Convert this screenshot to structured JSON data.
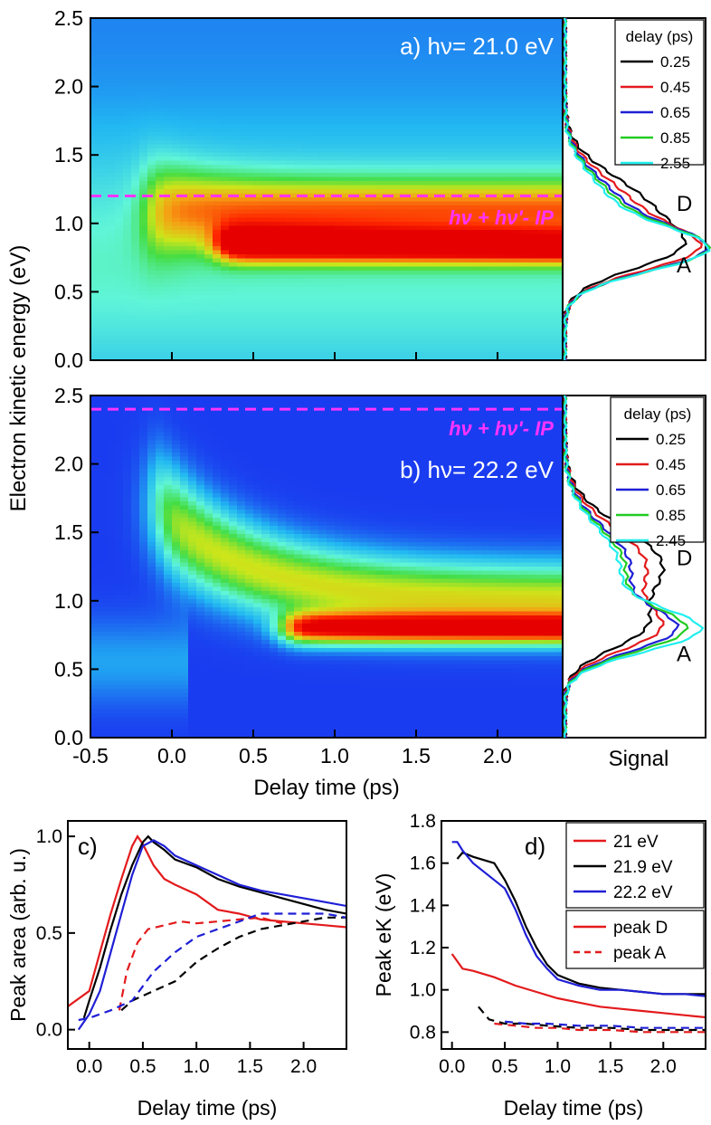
{
  "chart_data": [
    {
      "panel": "a",
      "type": "heatmap",
      "label_prefix": "a)",
      "photon_label": "hν= 21.0 eV",
      "line_label": "hν + hν'- IP",
      "line_y": 1.2,
      "xlim": [
        -0.5,
        2.4
      ],
      "ylim": [
        0,
        2.5
      ],
      "yticks": [
        "0.0",
        "0.5",
        "1.0",
        "1.5",
        "2.0",
        "2.5"
      ],
      "xticks": [
        "-0.5",
        "0.0",
        "0.5",
        "1.0",
        "1.5",
        "2.0"
      ],
      "colormap": [
        "#1a3cf0",
        "#22b8f2",
        "#5ff5d8",
        "#44dd44",
        "#cde51a",
        "#f5a014",
        "#ff2a00",
        "#e60000"
      ],
      "ridges": [
        {
          "name": "D",
          "e0": 1.1,
          "e_inf": 1.1,
          "t0": -0.15,
          "width": 0.22,
          "amp": 0.55,
          "decay": 0.35,
          "floor": 0.15
        },
        {
          "name": "A",
          "e0": 0.85,
          "e_inf": 0.77,
          "t0": 0.3,
          "width": 0.08,
          "amp": 0.95,
          "decay": 6.0,
          "floor": 0.85
        }
      ]
    },
    {
      "panel": "b",
      "type": "heatmap",
      "label_prefix": "b)",
      "photon_label": "hν= 22.2 eV",
      "line_label": "hν + hν'- IP",
      "line_y": 2.4,
      "xlim": [
        -0.5,
        2.4
      ],
      "ylim": [
        0,
        2.5
      ],
      "yticks": [
        "0.0",
        "0.5",
        "1.0",
        "1.5",
        "2.0",
        "2.5"
      ],
      "xticks": [
        "-0.5",
        "0.0",
        "0.5",
        "1.0",
        "1.5",
        "2.0"
      ],
      "xlabel": "Delay time (ps)",
      "ylabel_shared": "Electron kinetic energy (eV)",
      "colormap": [
        "#1a3cf0",
        "#22b8f2",
        "#5ff5d8",
        "#44dd44",
        "#cde51a",
        "#f5a014",
        "#ff2a00",
        "#e60000"
      ],
      "ridges": [
        {
          "name": "D",
          "e0": 1.7,
          "e_inf": 1.0,
          "t0": -0.1,
          "width": 0.25,
          "amp": 0.6,
          "decay": 0.55,
          "floor": 0.5
        },
        {
          "name": "A",
          "e0": 0.8,
          "e_inf": 0.78,
          "t0": 0.7,
          "width": 0.07,
          "amp": 0.95,
          "decay": 6.0,
          "floor": 0.95
        }
      ]
    },
    {
      "panel": "a-spectra",
      "type": "line",
      "legend_title": "delay (ps)",
      "legend": [
        "0.25",
        "0.45",
        "0.65",
        "0.85",
        "2.55"
      ],
      "colors": [
        "#000000",
        "#e31a1c",
        "#1f1fd6",
        "#22cc22",
        "#22eeee"
      ],
      "peak_labels": [
        {
          "text": "D",
          "y": 1.15
        },
        {
          "text": "A",
          "y": 0.7
        }
      ],
      "series": [
        {
          "name": "0.25",
          "d_amp": 0.75,
          "a_amp": 0.55
        },
        {
          "name": "0.45",
          "d_amp": 0.6,
          "a_amp": 0.75
        },
        {
          "name": "0.65",
          "d_amp": 0.5,
          "a_amp": 0.85
        },
        {
          "name": "0.85",
          "d_amp": 0.45,
          "a_amp": 0.88
        },
        {
          "name": "2.55",
          "d_amp": 0.4,
          "a_amp": 0.9
        }
      ]
    },
    {
      "panel": "b-spectra",
      "type": "line",
      "legend_title": "delay  (ps)",
      "legend": [
        "0.25",
        "0.45",
        "0.65",
        "0.85",
        "2.45"
      ],
      "colors": [
        "#000000",
        "#e31a1c",
        "#1f1fd6",
        "#22cc22",
        "#22eeee"
      ],
      "xlabel": "Signal",
      "peak_labels": [
        {
          "text": "D",
          "y": 1.32
        },
        {
          "text": "A",
          "y": 0.62
        }
      ],
      "series": [
        {
          "name": "0.25",
          "d_amp": 0.9,
          "a_amp": 0.4
        },
        {
          "name": "0.45",
          "d_amp": 0.75,
          "a_amp": 0.55
        },
        {
          "name": "0.65",
          "d_amp": 0.6,
          "a_amp": 0.7
        },
        {
          "name": "0.85",
          "d_amp": 0.55,
          "a_amp": 0.78
        },
        {
          "name": "2.45",
          "d_amp": 0.5,
          "a_amp": 0.9
        }
      ]
    },
    {
      "panel": "c",
      "type": "line",
      "label": "c)",
      "xlabel": "Delay time (ps)",
      "ylabel": "Peak area (arb. u.)",
      "xlim": [
        -0.2,
        2.4
      ],
      "ylim": [
        -0.1,
        1.08
      ],
      "xticks": [
        "0.0",
        "0.5",
        "1.0",
        "1.5",
        "2.0"
      ],
      "yticks": [
        "0.0",
        "0.5",
        "1.0"
      ],
      "series": [
        {
          "name": "21 eV peak D",
          "color": "#e31a1c",
          "dash": false,
          "x": [
            -0.2,
            0.0,
            0.1,
            0.2,
            0.3,
            0.4,
            0.45,
            0.5,
            0.6,
            0.7,
            0.8,
            1.0,
            1.2,
            1.4,
            1.6,
            1.8,
            2.0,
            2.2,
            2.4
          ],
          "y": [
            0.12,
            0.2,
            0.4,
            0.6,
            0.78,
            0.95,
            1.0,
            0.96,
            0.85,
            0.78,
            0.75,
            0.7,
            0.62,
            0.6,
            0.57,
            0.56,
            0.55,
            0.54,
            0.53
          ]
        },
        {
          "name": "21.9 eV peak D",
          "color": "#000000",
          "dash": false,
          "x": [
            -0.05,
            0.0,
            0.1,
            0.2,
            0.3,
            0.4,
            0.5,
            0.55,
            0.6,
            0.7,
            0.8,
            1.0,
            1.2,
            1.4,
            1.6,
            1.8,
            2.0,
            2.2,
            2.4
          ],
          "y": [
            0.06,
            0.15,
            0.32,
            0.52,
            0.7,
            0.85,
            0.97,
            1.0,
            0.97,
            0.93,
            0.88,
            0.84,
            0.78,
            0.74,
            0.71,
            0.68,
            0.65,
            0.62,
            0.6
          ]
        },
        {
          "name": "22.2 eV peak D",
          "color": "#1f1fd6",
          "dash": false,
          "x": [
            -0.1,
            0.0,
            0.1,
            0.2,
            0.3,
            0.4,
            0.5,
            0.6,
            0.7,
            0.8,
            1.0,
            1.2,
            1.4,
            1.6,
            1.8,
            2.0,
            2.2,
            2.4
          ],
          "y": [
            0.0,
            0.08,
            0.2,
            0.4,
            0.6,
            0.8,
            0.95,
            0.98,
            0.95,
            0.9,
            0.85,
            0.8,
            0.75,
            0.72,
            0.7,
            0.68,
            0.66,
            0.64
          ]
        },
        {
          "name": "21 eV peak A",
          "color": "#e31a1c",
          "dash": true,
          "x": [
            0.28,
            0.35,
            0.45,
            0.55,
            0.7,
            0.85,
            1.0,
            1.2,
            1.4,
            1.6,
            1.8
          ],
          "y": [
            0.1,
            0.3,
            0.45,
            0.52,
            0.54,
            0.56,
            0.55,
            0.56,
            0.57,
            0.58,
            0.55
          ]
        },
        {
          "name": "21.9 eV peak A",
          "color": "#000000",
          "dash": true,
          "x": [
            0.3,
            0.4,
            0.6,
            0.8,
            1.0,
            1.2,
            1.4,
            1.6,
            1.8,
            2.0,
            2.2,
            2.4
          ],
          "y": [
            0.1,
            0.15,
            0.2,
            0.25,
            0.35,
            0.42,
            0.48,
            0.52,
            0.54,
            0.56,
            0.58,
            0.58
          ]
        },
        {
          "name": "22.2 eV peak A",
          "color": "#1f1fd6",
          "dash": true,
          "x": [
            -0.1,
            0.0,
            0.2,
            0.4,
            0.6,
            0.8,
            1.0,
            1.2,
            1.4,
            1.6,
            1.8,
            2.0,
            2.2,
            2.4
          ],
          "y": [
            0.05,
            0.06,
            0.1,
            0.15,
            0.3,
            0.4,
            0.48,
            0.52,
            0.56,
            0.6,
            0.6,
            0.6,
            0.6,
            0.58
          ]
        }
      ]
    },
    {
      "panel": "d",
      "type": "line",
      "label": "d)",
      "xlabel": "Delay time (ps)",
      "ylabel": "Peak eK (eV)",
      "xlim": [
        -0.1,
        2.4
      ],
      "ylim": [
        0.72,
        1.8
      ],
      "xticks": [
        "0.0",
        "0.5",
        "1.0",
        "1.5",
        "2.0"
      ],
      "yticks": [
        "0.8",
        "1.0",
        "1.2",
        "1.4",
        "1.6",
        "1.8"
      ],
      "legend_energy": [
        {
          "text": "21 eV",
          "color": "#e31a1c"
        },
        {
          "text": "21.9 eV",
          "color": "#000000"
        },
        {
          "text": "22.2 eV",
          "color": "#1f1fd6"
        }
      ],
      "legend_peak": [
        {
          "text": "peak D",
          "dash": false
        },
        {
          "text": "peak A",
          "dash": true
        }
      ],
      "series": [
        {
          "name": "21 eV peak D",
          "color": "#e31a1c",
          "dash": false,
          "x": [
            0.0,
            0.1,
            0.2,
            0.4,
            0.6,
            0.8,
            1.0,
            1.2,
            1.4,
            1.6,
            1.8,
            2.0,
            2.2,
            2.4
          ],
          "y": [
            1.17,
            1.1,
            1.09,
            1.06,
            1.02,
            0.99,
            0.96,
            0.94,
            0.92,
            0.91,
            0.9,
            0.89,
            0.88,
            0.87
          ]
        },
        {
          "name": "21.9 eV peak D",
          "color": "#000000",
          "dash": false,
          "x": [
            0.05,
            0.1,
            0.2,
            0.4,
            0.5,
            0.6,
            0.7,
            0.8,
            0.9,
            1.0,
            1.2,
            1.4,
            1.6,
            1.8,
            2.0,
            2.2,
            2.4
          ],
          "y": [
            1.62,
            1.65,
            1.63,
            1.6,
            1.52,
            1.42,
            1.3,
            1.2,
            1.12,
            1.07,
            1.03,
            1.01,
            1.0,
            0.99,
            0.98,
            0.98,
            0.98
          ]
        },
        {
          "name": "22.2 eV peak D",
          "color": "#1f1fd6",
          "dash": false,
          "x": [
            0.0,
            0.05,
            0.1,
            0.2,
            0.4,
            0.5,
            0.6,
            0.7,
            0.8,
            0.9,
            1.0,
            1.2,
            1.4,
            1.6,
            1.8,
            2.0,
            2.2,
            2.4
          ],
          "y": [
            1.7,
            1.7,
            1.66,
            1.6,
            1.52,
            1.48,
            1.38,
            1.26,
            1.16,
            1.1,
            1.05,
            1.02,
            1.0,
            1.0,
            0.99,
            0.98,
            0.98,
            0.97
          ]
        },
        {
          "name": "21 eV peak A",
          "color": "#e31a1c",
          "dash": true,
          "x": [
            0.4,
            0.6,
            0.8,
            1.0,
            1.2,
            1.5,
            1.8,
            2.0,
            2.2,
            2.4
          ],
          "y": [
            0.84,
            0.83,
            0.82,
            0.82,
            0.81,
            0.81,
            0.8,
            0.8,
            0.8,
            0.8
          ]
        },
        {
          "name": "21.9 eV peak A",
          "color": "#000000",
          "dash": true,
          "x": [
            0.25,
            0.35,
            0.5,
            0.7,
            0.9,
            1.2,
            1.5,
            1.8,
            2.1,
            2.4
          ],
          "y": [
            0.92,
            0.86,
            0.84,
            0.84,
            0.83,
            0.82,
            0.82,
            0.81,
            0.81,
            0.81
          ]
        },
        {
          "name": "22.2 eV peak A",
          "color": "#1f1fd6",
          "dash": true,
          "x": [
            0.5,
            0.7,
            0.9,
            1.2,
            1.5,
            1.8,
            2.1,
            2.4
          ],
          "y": [
            0.85,
            0.84,
            0.84,
            0.83,
            0.83,
            0.82,
            0.82,
            0.82
          ]
        }
      ]
    }
  ]
}
